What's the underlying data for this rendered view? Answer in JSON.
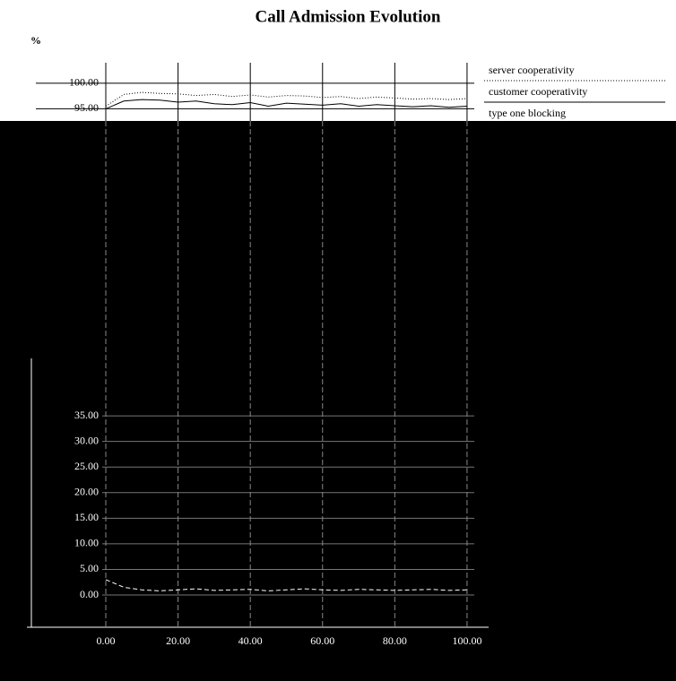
{
  "chart_data": {
    "type": "line",
    "title": "Call Admission Evolution",
    "ylabel": "%",
    "x": [
      0,
      5,
      10,
      15,
      20,
      25,
      30,
      35,
      40,
      45,
      50,
      55,
      60,
      65,
      70,
      75,
      80,
      85,
      90,
      95,
      100
    ],
    "series": [
      {
        "name": "server cooperativity",
        "color": "#000000",
        "style": "dotted",
        "values": [
          95.5,
          97.8,
          98.2,
          98.0,
          97.9,
          97.6,
          97.8,
          97.4,
          97.7,
          97.3,
          97.6,
          97.5,
          97.2,
          97.4,
          97.0,
          97.3,
          97.1,
          96.9,
          97.0,
          96.8,
          97.0
        ]
      },
      {
        "name": "customer cooperativity",
        "color": "#000000",
        "style": "solid",
        "values": [
          95.0,
          96.5,
          96.8,
          96.7,
          96.3,
          96.5,
          96.0,
          95.8,
          96.2,
          95.5,
          96.1,
          95.9,
          95.7,
          96.0,
          95.5,
          95.8,
          95.6,
          95.4,
          95.6,
          95.3,
          95.5
        ]
      },
      {
        "name": "type one blocking",
        "color": "#000000",
        "style": "dashed",
        "values": [
          3,
          1.5,
          1,
          0.8,
          1,
          1.2,
          0.9,
          1,
          1.1,
          0.8,
          1,
          1.2,
          1,
          0.9,
          1.1,
          1,
          0.9,
          1,
          1.1,
          0.9,
          1
        ]
      }
    ],
    "xlim": [
      0,
      102
    ],
    "xticks": [
      {
        "value": 0,
        "label": "0.00"
      },
      {
        "value": 20,
        "label": "20.00"
      },
      {
        "value": 40,
        "label": "40.00"
      },
      {
        "value": 60,
        "label": "60.00"
      },
      {
        "value": 80,
        "label": "80.00"
      },
      {
        "value": 100,
        "label": "100.00"
      }
    ],
    "ylim": [
      0,
      104
    ],
    "yticks": [
      {
        "value": 0,
        "label": "0.00"
      },
      {
        "value": 5,
        "label": "5.00"
      },
      {
        "value": 10,
        "label": "10.00"
      },
      {
        "value": 15,
        "label": "15.00"
      },
      {
        "value": 20,
        "label": "20.00"
      },
      {
        "value": 25,
        "label": "25.00"
      },
      {
        "value": 30,
        "label": "30.00"
      },
      {
        "value": 35,
        "label": "35.00"
      },
      {
        "value": 95,
        "label": "95.00"
      },
      {
        "value": 100,
        "label": "100.00"
      }
    ],
    "grid": true,
    "legend": "right"
  }
}
